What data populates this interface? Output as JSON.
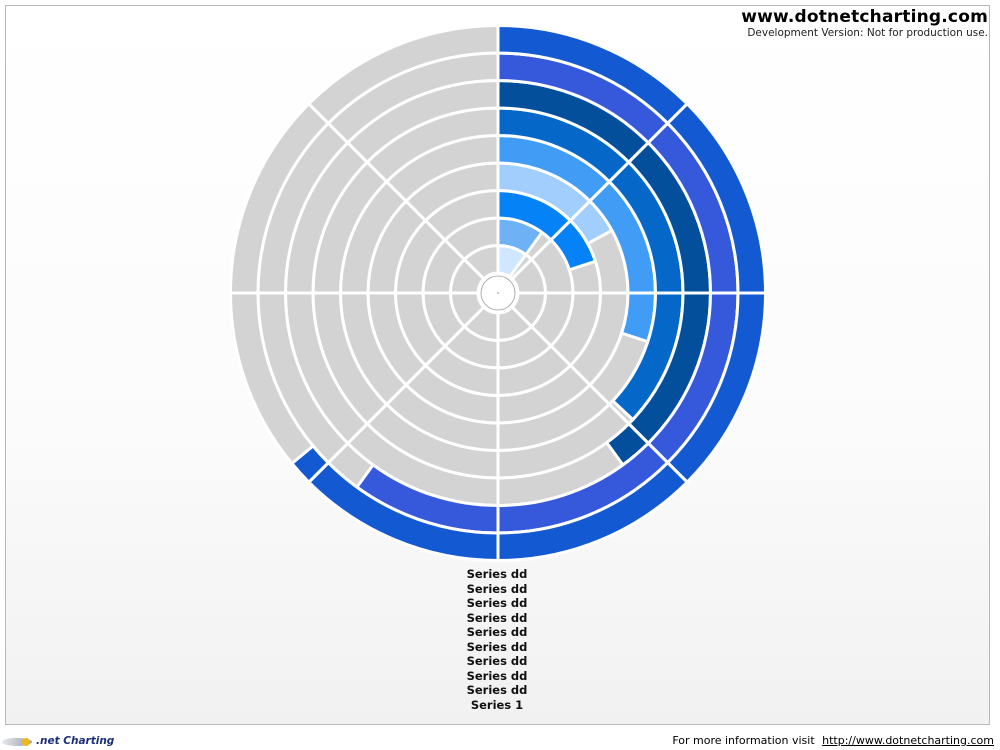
{
  "header": {
    "site": "www.dotnetcharting.com",
    "notice": "Development Version: Not for production use."
  },
  "footer": {
    "logo_text": ".net Charting",
    "info_text": "For more information visit",
    "link_text": "http://www.dotnetcharting.com"
  },
  "colors": {
    "inactive": "#d3d3d3",
    "separator": "#ffffff",
    "ring_colors": [
      "#cfe8ff",
      "#6fb1f5",
      "#0582f6",
      "#a2cefe",
      "#419cf6",
      "#0568c8",
      "#034f9c",
      "#3658db",
      "#1259d2"
    ]
  },
  "chart_data": {
    "type": "radial",
    "value_scale_max": 100,
    "segments_per_ring": 8,
    "series": [
      {
        "name": "Series dd",
        "value": 10
      },
      {
        "name": "Series dd",
        "value": 10
      },
      {
        "name": "Series dd",
        "value": 20
      },
      {
        "name": "Series dd",
        "value": 17
      },
      {
        "name": "Series dd",
        "value": 30
      },
      {
        "name": "Series dd",
        "value": 37
      },
      {
        "name": "Series dd",
        "value": 40
      },
      {
        "name": "Series dd",
        "value": 60
      },
      {
        "name": "Series dd",
        "value": 64
      },
      {
        "name": "Series 1",
        "value": 0
      }
    ]
  }
}
